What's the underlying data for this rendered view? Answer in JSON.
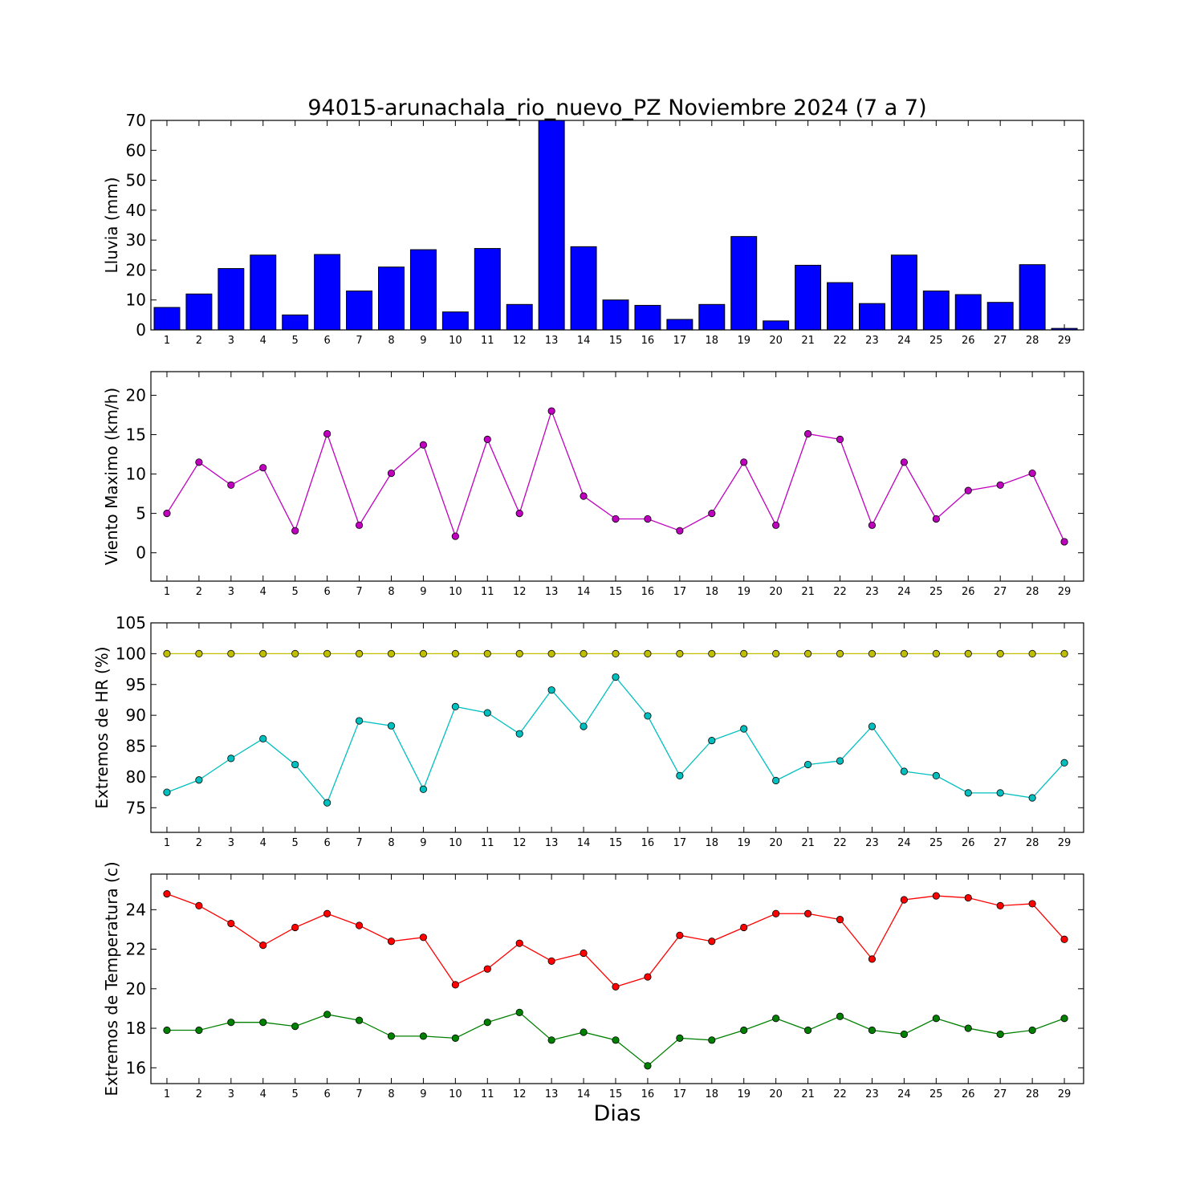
{
  "figure": {
    "title": "94015-arunachala_rio_nuevo_PZ Noviembre 2024  (7 a 7)",
    "xlabel": "Dias"
  },
  "chart_data": [
    {
      "type": "bar",
      "ylabel": "Lluvia (mm)",
      "ylim": [
        0,
        70
      ],
      "yticks": [
        0,
        10,
        20,
        30,
        40,
        50,
        60,
        70
      ],
      "x": [
        1,
        2,
        3,
        4,
        5,
        6,
        7,
        8,
        9,
        10,
        11,
        12,
        13,
        14,
        15,
        16,
        17,
        18,
        19,
        20,
        21,
        22,
        23,
        24,
        25,
        26,
        27,
        28,
        29
      ],
      "series": [
        {
          "color": "#0000ff",
          "values": [
            7.5,
            12,
            20.5,
            25,
            5,
            25.2,
            13,
            21,
            26.8,
            6,
            27.2,
            8.5,
            70,
            27.8,
            10,
            8.2,
            3.5,
            8.5,
            31.2,
            3,
            21.6,
            15.8,
            8.8,
            25,
            13,
            11.8,
            9.2,
            21.8,
            0.5
          ]
        }
      ]
    },
    {
      "type": "line",
      "ylabel": "Viento Maximo (km/h)",
      "ylim": [
        -3.6,
        23
      ],
      "yticks": [
        0,
        5,
        10,
        15,
        20
      ],
      "x": [
        1,
        2,
        3,
        4,
        5,
        6,
        7,
        8,
        9,
        10,
        11,
        12,
        13,
        14,
        15,
        16,
        17,
        18,
        19,
        20,
        21,
        22,
        23,
        24,
        25,
        26,
        27,
        28,
        29
      ],
      "series": [
        {
          "color": "#bf00bf",
          "values": [
            5,
            11.5,
            8.6,
            10.8,
            2.8,
            15.1,
            3.5,
            10.1,
            13.7,
            2.1,
            14.4,
            5,
            18,
            7.2,
            4.3,
            4.3,
            2.8,
            5,
            11.5,
            3.5,
            15.1,
            14.4,
            3.5,
            11.5,
            4.3,
            7.9,
            8.6,
            10.1,
            1.4
          ]
        }
      ]
    },
    {
      "type": "line",
      "ylabel": "Extremos de HR (%)",
      "ylim": [
        71,
        105
      ],
      "yticks": [
        75,
        80,
        85,
        90,
        95,
        100,
        105
      ],
      "x": [
        1,
        2,
        3,
        4,
        5,
        6,
        7,
        8,
        9,
        10,
        11,
        12,
        13,
        14,
        15,
        16,
        17,
        18,
        19,
        20,
        21,
        22,
        23,
        24,
        25,
        26,
        27,
        28,
        29
      ],
      "series": [
        {
          "color": "#bfbf00",
          "values": [
            100,
            100,
            100,
            100,
            100,
            100,
            100,
            100,
            100,
            100,
            100,
            100,
            100,
            100,
            100,
            100,
            100,
            100,
            100,
            100,
            100,
            100,
            100,
            100,
            100,
            100,
            100,
            100,
            100
          ]
        },
        {
          "color": "#00bfbf",
          "values": [
            77.5,
            79.5,
            83,
            86.2,
            82,
            75.8,
            89.1,
            88.3,
            78,
            91.4,
            90.4,
            87,
            94.1,
            88.2,
            96.2,
            89.9,
            80.2,
            85.9,
            87.8,
            79.4,
            82,
            82.6,
            88.2,
            80.9,
            80.2,
            77.4,
            77.4,
            76.6,
            82.3
          ]
        }
      ]
    },
    {
      "type": "line",
      "ylabel": "Extremos de Temperatura (c)",
      "ylim": [
        15.2,
        25.8
      ],
      "yticks": [
        16,
        18,
        20,
        22,
        24
      ],
      "x": [
        1,
        2,
        3,
        4,
        5,
        6,
        7,
        8,
        9,
        10,
        11,
        12,
        13,
        14,
        15,
        16,
        17,
        18,
        19,
        20,
        21,
        22,
        23,
        24,
        25,
        26,
        27,
        28,
        29
      ],
      "series": [
        {
          "color": "#ff0000",
          "values": [
            24.8,
            24.2,
            23.3,
            22.2,
            23.1,
            23.8,
            23.2,
            22.4,
            22.6,
            20.2,
            21,
            22.3,
            21.4,
            21.8,
            20.1,
            20.6,
            22.7,
            22.4,
            23.1,
            23.8,
            23.8,
            23.5,
            21.5,
            24.5,
            24.7,
            24.6,
            24.2,
            24.3,
            22.5
          ]
        },
        {
          "color": "#008000",
          "values": [
            17.9,
            17.9,
            18.3,
            18.3,
            18.1,
            18.7,
            18.4,
            17.6,
            17.6,
            17.5,
            18.3,
            18.8,
            17.4,
            17.8,
            17.4,
            16.1,
            17.5,
            17.4,
            17.9,
            18.5,
            17.9,
            18.6,
            17.9,
            17.7,
            18.5,
            18,
            17.7,
            17.9,
            18.5
          ]
        }
      ]
    }
  ]
}
